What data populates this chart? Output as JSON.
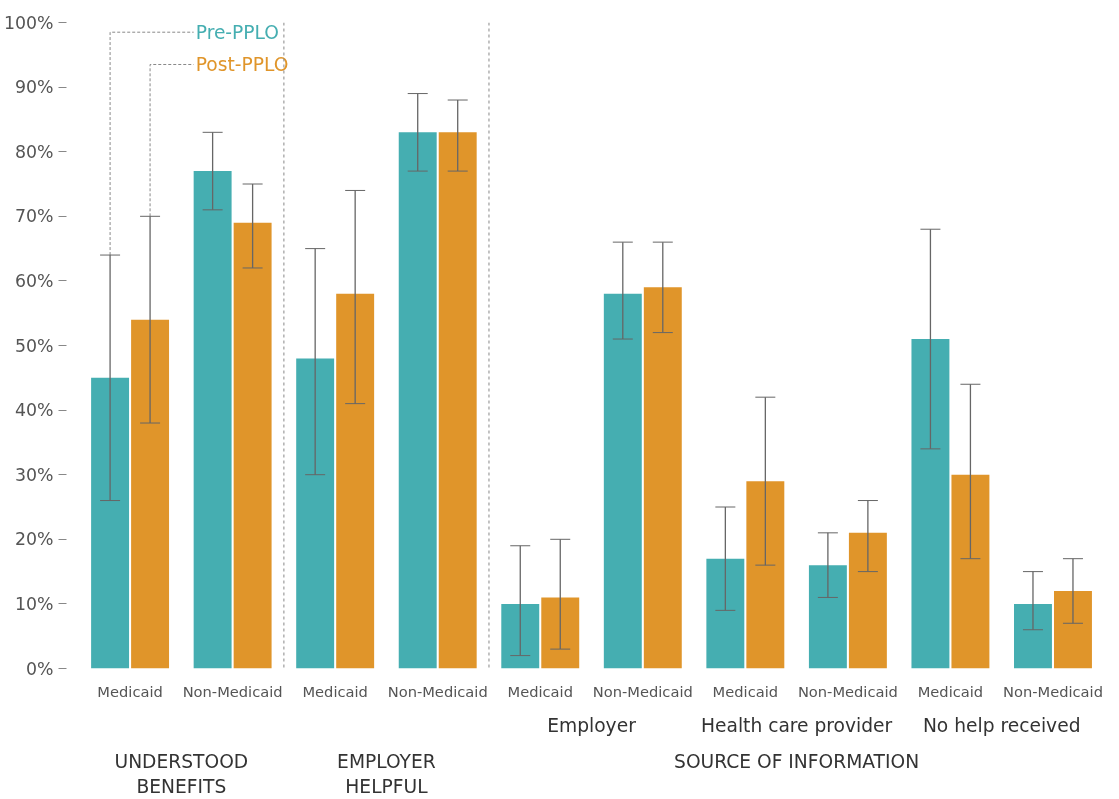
{
  "chart_data": {
    "type": "bar",
    "categories": [
      "Medicaid",
      "Non-Medicaid",
      "Medicaid",
      "Non-Medicaid",
      "Medicaid",
      "Non-Medicaid",
      "Medicaid",
      "Non-Medicaid",
      "Medicaid",
      "Non-Medicaid"
    ],
    "series": [
      {
        "name": "Pre-PPLO",
        "color": "#45aeb1",
        "values": [
          45,
          77,
          48,
          83,
          10,
          58,
          17,
          16,
          51,
          10
        ],
        "errors": [
          [
            26,
            64
          ],
          [
            71,
            83
          ],
          [
            30,
            65
          ],
          [
            77,
            89
          ],
          [
            2,
            19
          ],
          [
            51,
            66
          ],
          [
            9,
            25
          ],
          [
            11,
            21
          ],
          [
            34,
            68
          ],
          [
            6,
            15
          ]
        ]
      },
      {
        "name": "Post-PPLO",
        "color": "#e0952a",
        "values": [
          54,
          69,
          58,
          83,
          11,
          59,
          29,
          21,
          30,
          12
        ],
        "errors": [
          [
            38,
            70
          ],
          [
            62,
            75
          ],
          [
            41,
            74
          ],
          [
            77,
            88
          ],
          [
            3,
            20
          ],
          [
            52,
            66
          ],
          [
            16,
            42
          ],
          [
            15,
            26
          ],
          [
            17,
            44
          ],
          [
            7,
            17
          ]
        ]
      }
    ],
    "ylim": [
      0,
      100
    ],
    "yticks": [
      {
        "value": 0,
        "label": "0%"
      },
      {
        "value": 10,
        "label": "10%"
      },
      {
        "value": 20,
        "label": "20%"
      },
      {
        "value": 30,
        "label": "30%"
      },
      {
        "value": 40,
        "label": "40%"
      },
      {
        "value": 50,
        "label": "50%"
      },
      {
        "value": 60,
        "label": "60%"
      },
      {
        "value": 70,
        "label": "70%"
      },
      {
        "value": 80,
        "label": "80%"
      },
      {
        "value": 90,
        "label": "90%"
      },
      {
        "value": 100,
        "label": "100%"
      }
    ],
    "annotations": [
      "UNDERSTOOD BENEFITS",
      "EMPLOYER HELPFUL",
      "Employer",
      "Health care provider",
      "No help received",
      "SOURCE OF INFORMATION"
    ],
    "grid": false,
    "legend": "top left"
  }
}
